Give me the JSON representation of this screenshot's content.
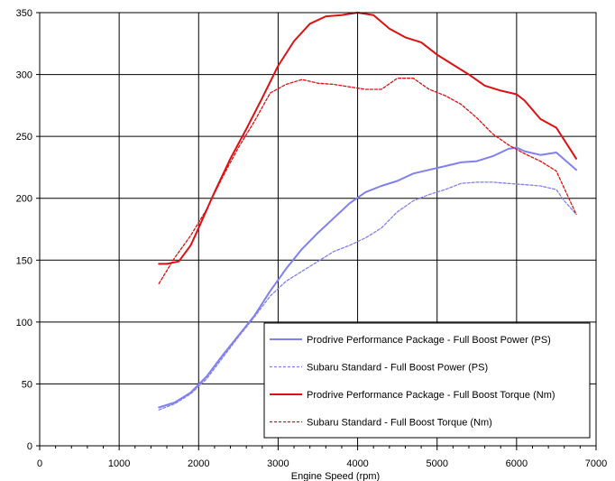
{
  "chart_data": {
    "type": "line",
    "title": "",
    "xlabel": "Engine Speed (rpm)",
    "ylabel": "",
    "xlim": [
      0,
      7000
    ],
    "ylim": [
      0,
      350
    ],
    "x_ticks": [
      0,
      1000,
      2000,
      3000,
      4000,
      5000,
      6000,
      7000
    ],
    "y_ticks": [
      0,
      50,
      100,
      150,
      200,
      250,
      300,
      350
    ],
    "grid": true,
    "legend_position": "bottom-right",
    "series": [
      {
        "name": "Prodrive Performance Package - Full Boost Power (PS)",
        "color": "#8080ee",
        "style": "solid",
        "width": 2,
        "x": [
          1500,
          1700,
          1900,
          2100,
          2300,
          2500,
          2700,
          2900,
          3100,
          3300,
          3500,
          3700,
          3900,
          4100,
          4300,
          4500,
          4700,
          4900,
          5100,
          5300,
          5500,
          5700,
          5900,
          6000,
          6100,
          6300,
          6500,
          6750
        ],
        "y": [
          31,
          35,
          43,
          56,
          73,
          89,
          105,
          125,
          143,
          159,
          172,
          184,
          196,
          205,
          210,
          214,
          220,
          223,
          226,
          229,
          230,
          234,
          240,
          241,
          238,
          235,
          237,
          223
        ]
      },
      {
        "name": "Subaru Standard - Full Boost Power (PS)",
        "color": "#8080ee",
        "style": "dashed",
        "width": 1.3,
        "x": [
          1500,
          1700,
          1900,
          2100,
          2300,
          2500,
          2700,
          2900,
          3100,
          3300,
          3500,
          3700,
          3900,
          4100,
          4300,
          4500,
          4700,
          4900,
          5100,
          5300,
          5500,
          5700,
          5900,
          6100,
          6300,
          6500,
          6600,
          6750
        ],
        "y": [
          29,
          34,
          42,
          54,
          71,
          88,
          104,
          121,
          133,
          141,
          149,
          157,
          162,
          168,
          176,
          189,
          198,
          203,
          207,
          212,
          213,
          213,
          212,
          211,
          210,
          207,
          198,
          187
        ]
      },
      {
        "name": "Prodrive Performance Package - Full Boost Torque (Nm)",
        "color": "#dd1111",
        "style": "solid",
        "width": 2,
        "x": [
          1500,
          1600,
          1750,
          1900,
          2000,
          2200,
          2400,
          2600,
          2800,
          3000,
          3200,
          3400,
          3600,
          3800,
          4000,
          4200,
          4400,
          4600,
          4800,
          5000,
          5200,
          5400,
          5600,
          5800,
          6000,
          6100,
          6300,
          6500,
          6750
        ],
        "y": [
          147,
          147,
          149,
          162,
          176,
          205,
          232,
          256,
          281,
          307,
          327,
          341,
          347,
          348,
          350,
          348,
          337,
          330,
          326,
          316,
          308,
          300,
          291,
          287,
          284,
          279,
          264,
          257,
          232
        ]
      },
      {
        "name": "Subaru Standard - Full Boost Torque (Nm)",
        "color": "#dd1111",
        "style": "dashed",
        "width": 1.3,
        "x": [
          1500,
          1700,
          1900,
          2100,
          2300,
          2500,
          2700,
          2900,
          3100,
          3300,
          3500,
          3700,
          3900,
          4100,
          4300,
          4500,
          4700,
          4900,
          5100,
          5300,
          5500,
          5700,
          5900,
          6100,
          6300,
          6500,
          6750
        ],
        "y": [
          131,
          152,
          170,
          191,
          217,
          241,
          262,
          285,
          292,
          296,
          293,
          292,
          290,
          288,
          288,
          297,
          297,
          288,
          283,
          276,
          265,
          252,
          243,
          236,
          230,
          222,
          187
        ]
      }
    ]
  }
}
